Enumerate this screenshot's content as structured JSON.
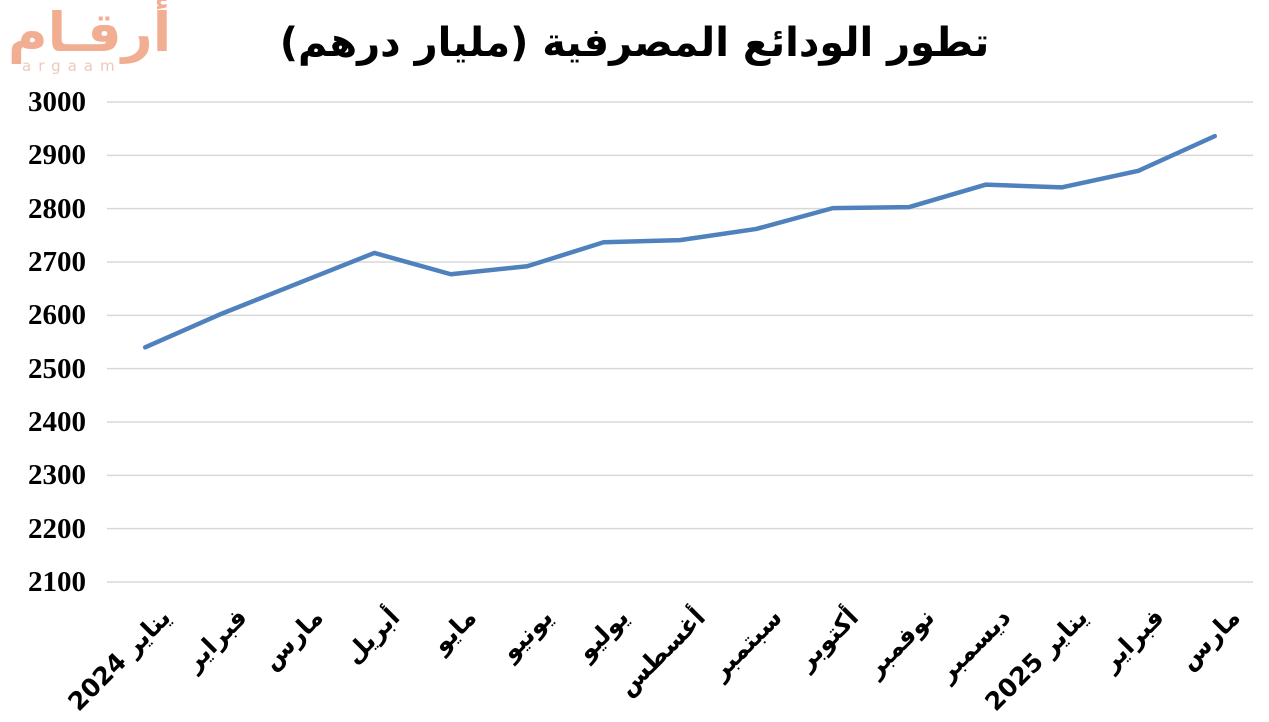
{
  "logo": {
    "arabic": "أرقـام",
    "latin": "argaam",
    "arabic_color": "#F2AE92",
    "latin_color": "#EDC9BB"
  },
  "chart_data": {
    "type": "line",
    "title": "تطور الودائع المصرفية (مليار درهم)",
    "xlabel": "",
    "ylabel": "",
    "categories": [
      "يناير 2024",
      "فبراير",
      "مارس",
      "أبريل",
      "مايو",
      "يونيو",
      "يوليو",
      "أغسطس",
      "سبتمبر",
      "أكتوبر",
      "نوفمبر",
      "ديسمبر",
      "يناير 2025",
      "فبراير",
      "مارس"
    ],
    "values": [
      2540,
      2603,
      2660,
      2717,
      2677,
      2692,
      2737,
      2741,
      2762,
      2801,
      2803,
      2845,
      2840,
      2871,
      2936
    ],
    "ylim": [
      2100,
      3000
    ],
    "ytick_step": 100,
    "yticks": [
      2100,
      2200,
      2300,
      2400,
      2500,
      2600,
      2700,
      2800,
      2900,
      3000
    ],
    "grid": true,
    "legend_position": "none",
    "line_color": "#4F81BD",
    "gridline_color": "#D8D8D8",
    "text_color": "#000000"
  }
}
